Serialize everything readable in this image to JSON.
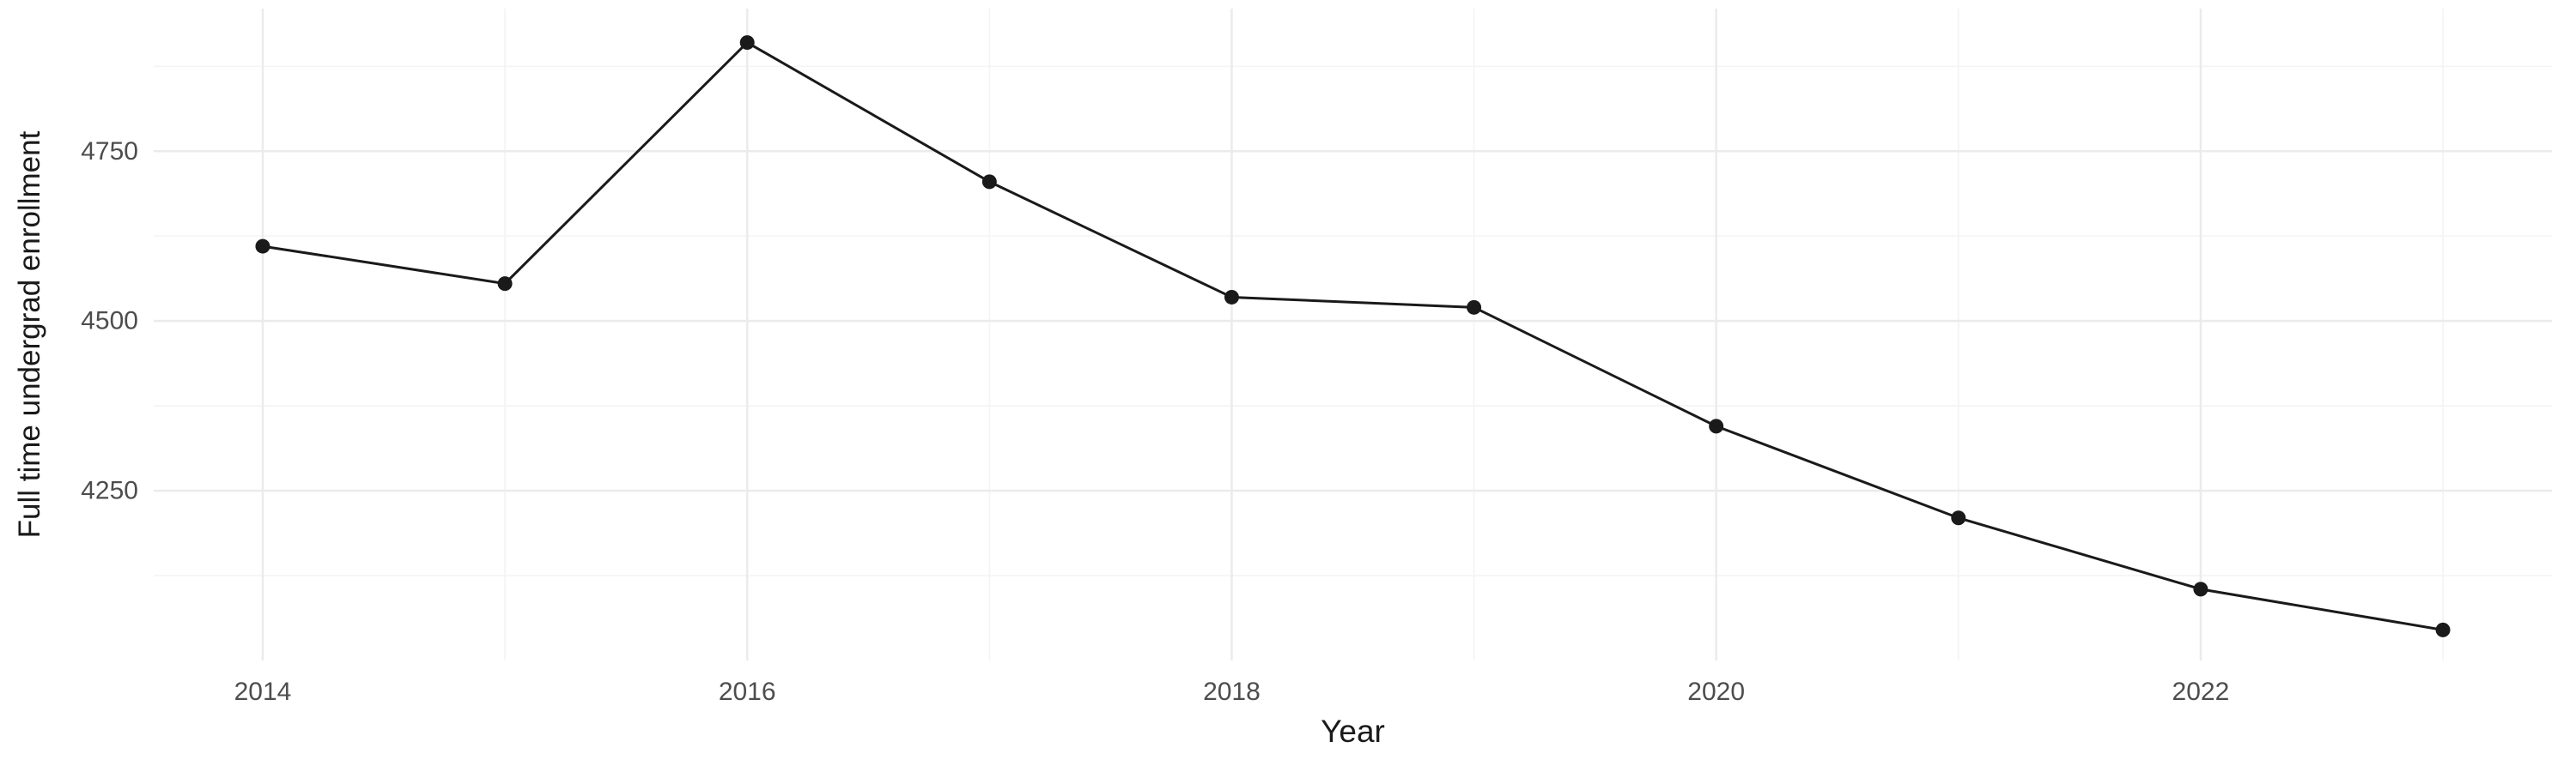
{
  "chart_data": {
    "type": "line",
    "title": "",
    "xlabel": "Year",
    "ylabel": "Full time undergrad enrollment",
    "x": [
      2014,
      2015,
      2016,
      2017,
      2018,
      2019,
      2020,
      2021,
      2022,
      2023
    ],
    "values": [
      4610,
      4555,
      4910,
      4705,
      4535,
      4520,
      4345,
      4210,
      4105,
      4045
    ],
    "series_name": "Full time undergrad enrollment",
    "xlim": [
      2013.55,
      2023.45
    ],
    "ylim": [
      4000,
      4960
    ],
    "x_major_ticks": [
      2014,
      2016,
      2018,
      2020,
      2022
    ],
    "x_minor_gridlines": [
      2015,
      2017,
      2019,
      2021,
      2023
    ],
    "y_major_ticks": [
      4250,
      4500,
      4750
    ],
    "y_minor_gridlines": [
      4125,
      4375,
      4625,
      4875
    ],
    "grid": true,
    "legend": "none",
    "marker": "point",
    "colors": {
      "line": "#1a1a1a",
      "point": "#1a1a1a",
      "grid_major": "#ebebeb",
      "grid_minor": "#f4f4f4",
      "background": "#ffffff",
      "tick_label": "#4d4d4d",
      "axis_title": "#1a1a1a"
    }
  }
}
